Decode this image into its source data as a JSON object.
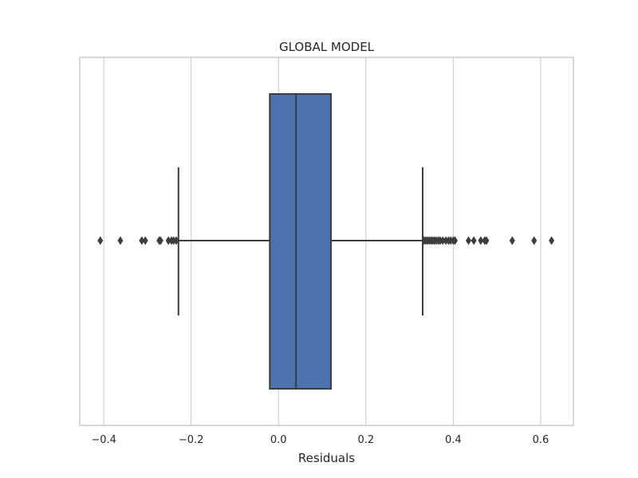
{
  "chart_data": {
    "type": "box",
    "title": "GLOBAL MODEL",
    "xlabel": "Residuals",
    "ylabel": "",
    "xlim": [
      -0.455,
      0.675
    ],
    "xticks": [
      -0.4,
      -0.2,
      0.0,
      0.2,
      0.4,
      0.6
    ],
    "xtick_labels": [
      "−0.4",
      "−0.2",
      "0.0",
      "0.2",
      "0.4",
      "0.6"
    ],
    "grid": "vertical",
    "box": {
      "whisker_low": -0.229,
      "q1": -0.02,
      "median": 0.04,
      "q3": 0.12,
      "whisker_high": 0.33,
      "color": "#4C72B0",
      "edge_color": "#3d3d3d"
    },
    "outliers": [
      -0.408,
      -0.362,
      -0.313,
      -0.305,
      -0.273,
      -0.27,
      -0.252,
      -0.245,
      -0.24,
      -0.234,
      0.333,
      0.337,
      0.341,
      0.345,
      0.349,
      0.353,
      0.357,
      0.361,
      0.366,
      0.37,
      0.376,
      0.383,
      0.389,
      0.394,
      0.4,
      0.404,
      0.435,
      0.447,
      0.463,
      0.472,
      0.476,
      0.535,
      0.585,
      0.625
    ]
  }
}
